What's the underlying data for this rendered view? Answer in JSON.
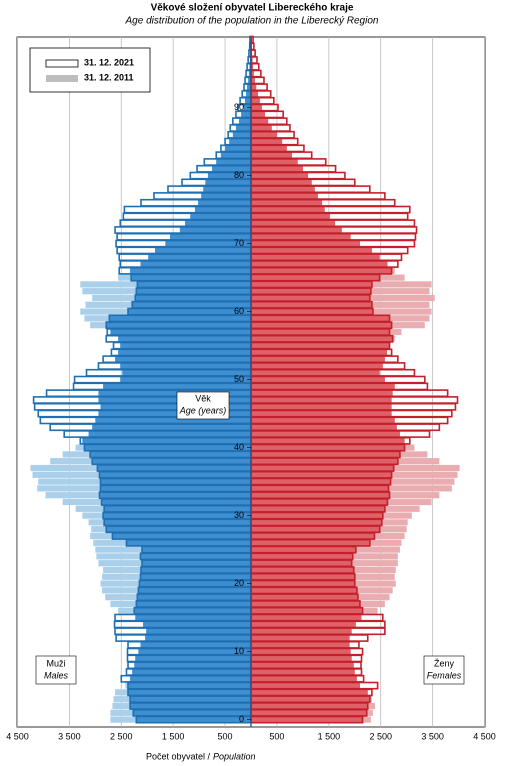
{
  "chart_data": {
    "type": "population_pyramid",
    "title": "Věkové složení obyvatel Libereckého kraje",
    "subtitle": "Age distribution of the population in the Liberecký Region",
    "x_label": "Počet obyvatel /",
    "x_label_en": "Population",
    "age_label": "Věk",
    "age_label_en": "Age (years)",
    "left_label": "Muži",
    "left_label_en": "Males",
    "right_label": "Ženy",
    "right_label_en": "Females",
    "xlim": [
      0,
      4500
    ],
    "xticks": [
      {
        "value": 4500,
        "label": "4 500"
      },
      {
        "value": 3500,
        "label": "3 500"
      },
      {
        "value": 2500,
        "label": "2 500"
      },
      {
        "value": 1500,
        "label": "1 500"
      },
      500
    ],
    "ylim": [
      0,
      100
    ],
    "yticks": [
      0,
      10,
      20,
      30,
      40,
      50,
      60,
      70,
      80,
      90
    ],
    "grid": true,
    "legend": "top-left",
    "ages": [
      0,
      1,
      2,
      3,
      4,
      5,
      6,
      7,
      8,
      9,
      10,
      11,
      12,
      13,
      14,
      15,
      16,
      17,
      18,
      19,
      20,
      21,
      22,
      23,
      24,
      25,
      26,
      27,
      28,
      29,
      30,
      31,
      32,
      33,
      34,
      35,
      36,
      37,
      38,
      39,
      40,
      41,
      42,
      43,
      44,
      45,
      46,
      47,
      48,
      49,
      50,
      51,
      52,
      53,
      54,
      55,
      56,
      57,
      58,
      59,
      60,
      61,
      62,
      63,
      64,
      65,
      66,
      67,
      68,
      69,
      70,
      71,
      72,
      73,
      74,
      75,
      76,
      77,
      78,
      79,
      80,
      81,
      82,
      83,
      84,
      85,
      86,
      87,
      88,
      89,
      90,
      91,
      92,
      93,
      94,
      95,
      96,
      97,
      98,
      99,
      100
    ],
    "series": [
      {
        "name": "31. 12. 2021",
        "style": "outline",
        "legend_color": "#ffffff",
        "male_color": "#1f6fb2",
        "female_color": "#c4202b",
        "males": [
          2210,
          2270,
          2330,
          2330,
          2370,
          2370,
          2500,
          2400,
          2370,
          2380,
          2380,
          2370,
          2600,
          2620,
          2630,
          2620,
          2250,
          2210,
          2190,
          2170,
          2150,
          2130,
          2120,
          2100,
          2130,
          2100,
          2400,
          2670,
          2790,
          2830,
          2850,
          2830,
          2880,
          2920,
          2900,
          2900,
          2920,
          2960,
          3060,
          3100,
          3210,
          3290,
          3600,
          3870,
          4060,
          4100,
          4170,
          4190,
          3940,
          3420,
          3400,
          3170,
          2940,
          2850,
          2690,
          2650,
          2790,
          2770,
          2790,
          2730,
          2370,
          2290,
          2230,
          2210,
          2190,
          2310,
          2540,
          2520,
          2540,
          2580,
          2600,
          2580,
          2620,
          2520,
          2460,
          2440,
          2120,
          1870,
          1600,
          1330,
          1170,
          1040,
          900,
          670,
          580,
          500,
          440,
          400,
          350,
          290,
          250,
          210,
          170,
          135,
          115,
          95,
          75,
          55,
          40,
          25,
          20
        ],
        "females": [
          2150,
          2230,
          2250,
          2290,
          2330,
          2440,
          2170,
          2130,
          2120,
          2130,
          2150,
          2080,
          2250,
          2580,
          2580,
          2540,
          2150,
          2100,
          2060,
          2040,
          2000,
          2000,
          1980,
          1940,
          1960,
          2020,
          2290,
          2380,
          2480,
          2520,
          2540,
          2580,
          2630,
          2670,
          2650,
          2690,
          2710,
          2750,
          2830,
          2870,
          2960,
          3060,
          3440,
          3630,
          3790,
          3870,
          3940,
          3980,
          3790,
          3400,
          3350,
          3150,
          2960,
          2830,
          2710,
          2670,
          2730,
          2670,
          2710,
          2670,
          2350,
          2330,
          2290,
          2310,
          2330,
          2480,
          2710,
          2830,
          2900,
          3020,
          3150,
          3170,
          3190,
          3150,
          3020,
          3060,
          2770,
          2580,
          2290,
          2000,
          1810,
          1630,
          1440,
          1170,
          1020,
          900,
          830,
          750,
          690,
          620,
          520,
          440,
          380,
          310,
          250,
          190,
          150,
          115,
          80,
          55,
          40
        ]
      },
      {
        "name": "31. 12. 2011",
        "style": "fill",
        "legend_color": "#bdbdbd",
        "male_color": "#a9cfeb",
        "female_color": "#e9adb1",
        "overlap_male_color": "#3d8fd1",
        "overlap_female_color": "#e06068",
        "males": [
          2710,
          2710,
          2670,
          2650,
          2620,
          2420,
          2330,
          2290,
          2250,
          2230,
          2170,
          2130,
          2040,
          2020,
          2080,
          2230,
          2560,
          2710,
          2810,
          2870,
          2900,
          2870,
          2850,
          2940,
          2980,
          3000,
          3040,
          3100,
          3080,
          3130,
          3250,
          3380,
          3630,
          3960,
          4120,
          4100,
          4210,
          4250,
          3870,
          3630,
          3380,
          3250,
          3130,
          3060,
          3000,
          2940,
          2900,
          2940,
          2940,
          2850,
          2520,
          2480,
          2520,
          2620,
          2560,
          2520,
          2560,
          2710,
          3100,
          3210,
          3290,
          3190,
          3060,
          3250,
          3290,
          2560,
          2330,
          2130,
          1980,
          1850,
          1650,
          1560,
          1370,
          1270,
          1170,
          1080,
          1020,
          960,
          920,
          880,
          830,
          750,
          670,
          580,
          500,
          420,
          350,
          290,
          230,
          190,
          150,
          115,
          95,
          75,
          55,
          40,
          30,
          20,
          15,
          10,
          5
        ],
        "females": [
          2310,
          2350,
          2390,
          2330,
          2250,
          2100,
          2040,
          2000,
          1980,
          1940,
          1920,
          1900,
          1900,
          1940,
          2020,
          2130,
          2440,
          2580,
          2670,
          2730,
          2790,
          2770,
          2790,
          2830,
          2830,
          2870,
          2900,
          2960,
          3000,
          3020,
          3100,
          3250,
          3480,
          3630,
          3870,
          3920,
          3980,
          4020,
          3630,
          3400,
          3150,
          2960,
          2870,
          2810,
          2770,
          2710,
          2710,
          2710,
          2730,
          2770,
          2580,
          2480,
          2540,
          2580,
          2620,
          2670,
          2770,
          2900,
          3350,
          3440,
          3480,
          3440,
          3540,
          3440,
          3480,
          2960,
          2770,
          2630,
          2480,
          2330,
          2100,
          1920,
          1750,
          1620,
          1520,
          1420,
          1370,
          1290,
          1230,
          1170,
          1100,
          1000,
          900,
          790,
          690,
          600,
          500,
          400,
          330,
          270,
          210,
          170,
          135,
          100,
          75,
          55,
          40,
          30,
          20,
          12,
          8
        ]
      }
    ]
  }
}
